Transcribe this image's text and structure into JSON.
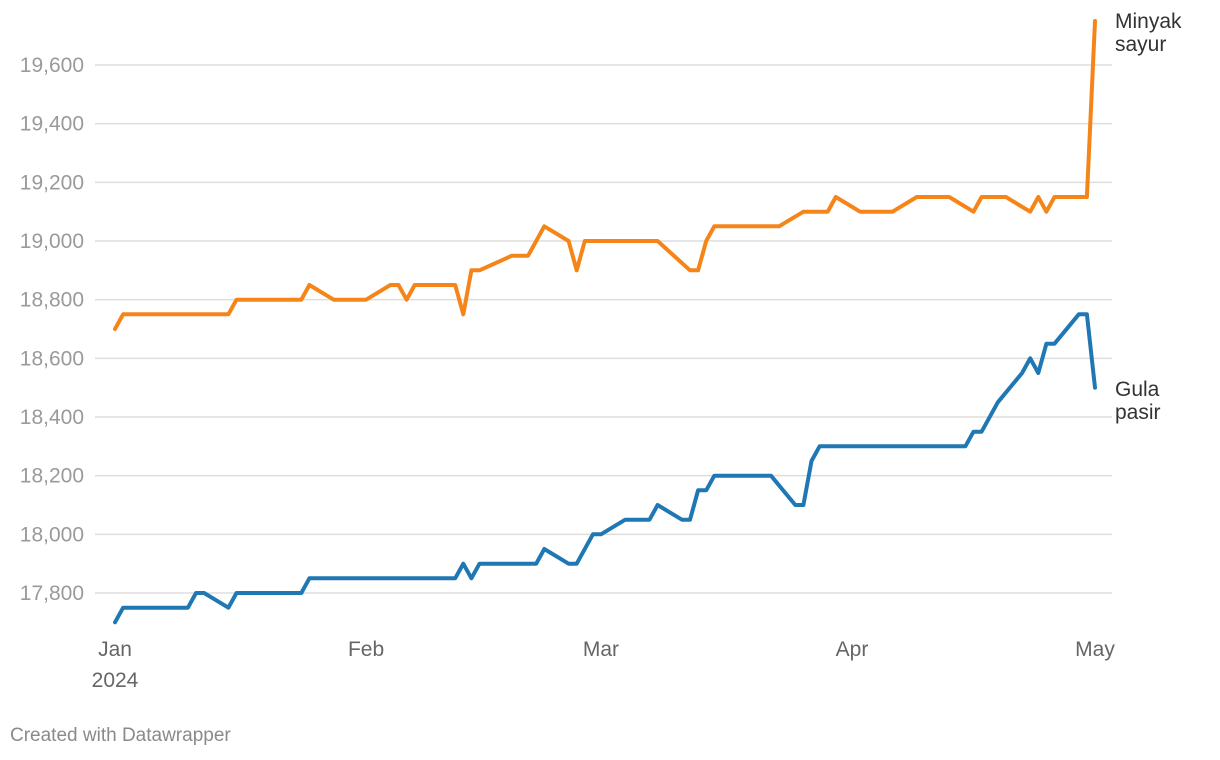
{
  "chart_data": {
    "type": "line",
    "title": "",
    "xlabel": "",
    "ylabel": "",
    "ylim": [
      17700,
      19750
    ],
    "yticks": [
      17800,
      18000,
      18200,
      18400,
      18600,
      18800,
      19000,
      19200,
      19400,
      19600
    ],
    "ytick_labels": [
      "17,800",
      "18,000",
      "18,200",
      "18,400",
      "18,600",
      "18,800",
      "19,000",
      "19,200",
      "19,400",
      "19,600"
    ],
    "xlim": [
      "2024-01-01",
      "2024-05-01"
    ],
    "xticks": [
      "2024-01-01",
      "2024-02-01",
      "2024-03-01",
      "2024-04-01",
      "2024-05-01"
    ],
    "xtick_labels": [
      "Jan",
      "Feb",
      "Mar",
      "Apr",
      "May"
    ],
    "xtick_sublabels": [
      "2024",
      "",
      "",
      "",
      ""
    ],
    "grid": true,
    "legend": "direct labels at line ends (right)",
    "series": [
      {
        "name": "Minyak sayur",
        "label_lines": [
          "Minyak",
          "sayur"
        ],
        "color": "#f58518",
        "points": [
          [
            "2024-01-01",
            18700
          ],
          [
            "2024-01-02",
            18750
          ],
          [
            "2024-01-15",
            18750
          ],
          [
            "2024-01-16",
            18800
          ],
          [
            "2024-01-24",
            18800
          ],
          [
            "2024-01-25",
            18850
          ],
          [
            "2024-01-28",
            18800
          ],
          [
            "2024-02-01",
            18800
          ],
          [
            "2024-02-04",
            18850
          ],
          [
            "2024-02-05",
            18850
          ],
          [
            "2024-02-06",
            18800
          ],
          [
            "2024-02-07",
            18850
          ],
          [
            "2024-02-12",
            18850
          ],
          [
            "2024-02-13",
            18750
          ],
          [
            "2024-02-14",
            18900
          ],
          [
            "2024-02-15",
            18900
          ],
          [
            "2024-02-19",
            18950
          ],
          [
            "2024-02-21",
            18950
          ],
          [
            "2024-02-23",
            19050
          ],
          [
            "2024-02-26",
            19000
          ],
          [
            "2024-02-27",
            18900
          ],
          [
            "2024-02-28",
            19000
          ],
          [
            "2024-03-08",
            19000
          ],
          [
            "2024-03-12",
            18900
          ],
          [
            "2024-03-13",
            18900
          ],
          [
            "2024-03-14",
            19000
          ],
          [
            "2024-03-15",
            19050
          ],
          [
            "2024-03-23",
            19050
          ],
          [
            "2024-03-26",
            19100
          ],
          [
            "2024-03-29",
            19100
          ],
          [
            "2024-03-30",
            19150
          ],
          [
            "2024-04-02",
            19100
          ],
          [
            "2024-04-06",
            19100
          ],
          [
            "2024-04-09",
            19150
          ],
          [
            "2024-04-13",
            19150
          ],
          [
            "2024-04-16",
            19100
          ],
          [
            "2024-04-17",
            19150
          ],
          [
            "2024-04-20",
            19150
          ],
          [
            "2024-04-23",
            19100
          ],
          [
            "2024-04-24",
            19150
          ],
          [
            "2024-04-25",
            19100
          ],
          [
            "2024-04-26",
            19150
          ],
          [
            "2024-04-30",
            19150
          ],
          [
            "2024-05-01",
            19750
          ]
        ]
      },
      {
        "name": "Gula pasir",
        "label_lines": [
          "Gula",
          "pasir"
        ],
        "color": "#1f77b4",
        "points": [
          [
            "2024-01-01",
            17700
          ],
          [
            "2024-01-02",
            17750
          ],
          [
            "2024-01-10",
            17750
          ],
          [
            "2024-01-11",
            17800
          ],
          [
            "2024-01-12",
            17800
          ],
          [
            "2024-01-15",
            17750
          ],
          [
            "2024-01-16",
            17800
          ],
          [
            "2024-01-24",
            17800
          ],
          [
            "2024-01-25",
            17850
          ],
          [
            "2024-02-12",
            17850
          ],
          [
            "2024-02-13",
            17900
          ],
          [
            "2024-02-14",
            17850
          ],
          [
            "2024-02-15",
            17900
          ],
          [
            "2024-02-22",
            17900
          ],
          [
            "2024-02-23",
            17950
          ],
          [
            "2024-02-26",
            17900
          ],
          [
            "2024-02-27",
            17900
          ],
          [
            "2024-02-29",
            18000
          ],
          [
            "2024-03-01",
            18000
          ],
          [
            "2024-03-04",
            18050
          ],
          [
            "2024-03-07",
            18050
          ],
          [
            "2024-03-08",
            18100
          ],
          [
            "2024-03-11",
            18050
          ],
          [
            "2024-03-12",
            18050
          ],
          [
            "2024-03-13",
            18150
          ],
          [
            "2024-03-14",
            18150
          ],
          [
            "2024-03-15",
            18200
          ],
          [
            "2024-03-22",
            18200
          ],
          [
            "2024-03-25",
            18100
          ],
          [
            "2024-03-26",
            18100
          ],
          [
            "2024-03-27",
            18250
          ],
          [
            "2024-03-28",
            18300
          ],
          [
            "2024-04-15",
            18300
          ],
          [
            "2024-04-16",
            18350
          ],
          [
            "2024-04-17",
            18350
          ],
          [
            "2024-04-19",
            18450
          ],
          [
            "2024-04-22",
            18550
          ],
          [
            "2024-04-23",
            18600
          ],
          [
            "2024-04-24",
            18550
          ],
          [
            "2024-04-25",
            18650
          ],
          [
            "2024-04-26",
            18650
          ],
          [
            "2024-04-29",
            18750
          ],
          [
            "2024-04-30",
            18750
          ],
          [
            "2024-05-01",
            18500
          ]
        ]
      }
    ]
  },
  "footer": {
    "credit": "Created with Datawrapper"
  }
}
